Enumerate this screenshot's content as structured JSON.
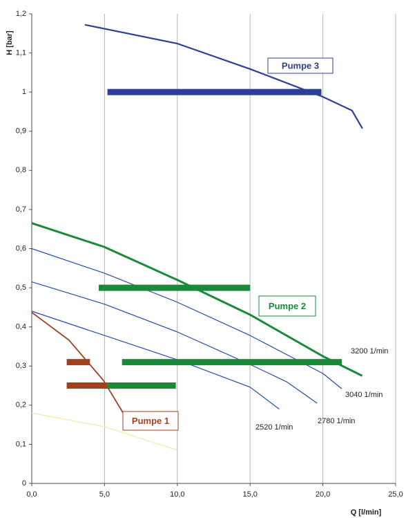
{
  "chart_data": {
    "type": "line",
    "y_label": "H [bar]",
    "x_label": "Q [l/min]",
    "xlim": [
      0,
      25
    ],
    "xticks": [
      {
        "value": 0,
        "label": "0,0"
      },
      {
        "value": 5,
        "label": "5,0"
      },
      {
        "value": 10,
        "label": "10,0"
      },
      {
        "value": 15,
        "label": "15,0"
      },
      {
        "value": 20,
        "label": "20,0"
      },
      {
        "value": 25,
        "label": "25,0"
      }
    ],
    "ylim": [
      0,
      1.2
    ],
    "yticks": [
      0,
      {
        "value": 0.1,
        "label": "0,1"
      },
      {
        "value": 0.2,
        "label": "0,2"
      },
      {
        "value": 0.3,
        "label": "0,3"
      },
      {
        "value": 0.4,
        "label": "0,4"
      },
      {
        "value": 0.5,
        "label": "0,5"
      },
      {
        "value": 0.6,
        "label": "0,6"
      },
      {
        "value": 0.7,
        "label": "0,7"
      },
      {
        "value": 0.8,
        "label": "0,8"
      },
      {
        "value": 0.9,
        "label": "0,9"
      },
      1,
      {
        "value": 1.1,
        "label": "1,1"
      },
      {
        "value": 1.2,
        "label": "1,2"
      }
    ],
    "grid": true,
    "series": [
      {
        "name": "Pumpe 3",
        "color": "#2b3f94",
        "x": [
          3.65,
          10,
          15,
          20,
          22,
          22.72
        ],
        "values": [
          1.172,
          1.124,
          1.059,
          0.988,
          0.953,
          0.907
        ]
      },
      {
        "name": "Pumpe 2",
        "color": "#1a8a3a",
        "x": [
          0,
          5,
          10,
          15,
          20,
          22.7
        ],
        "values": [
          0.665,
          0.604,
          0.52,
          0.431,
          0.325,
          0.275
        ]
      },
      {
        "name": "3040 1/min",
        "color": "#1f4fa8",
        "x": [
          0,
          5,
          10,
          15,
          20,
          21.3
        ],
        "values": [
          0.6,
          0.537,
          0.463,
          0.378,
          0.281,
          0.242
        ]
      },
      {
        "name": "2780 1/min",
        "color": "#1f4fa8",
        "x": [
          0,
          5,
          10,
          15,
          17.5,
          19.6
        ],
        "values": [
          0.515,
          0.458,
          0.387,
          0.304,
          0.26,
          0.205
        ]
      },
      {
        "name": "2520 1/min",
        "color": "#1f4fa8",
        "x": [
          0,
          5,
          10,
          15,
          17
        ],
        "values": [
          0.44,
          0.378,
          0.316,
          0.246,
          0.19
        ]
      },
      {
        "name": "Pumpe 1",
        "color": "#a0401e",
        "x": [
          0,
          2.56,
          4.93,
          6.36
        ],
        "values": [
          0.437,
          0.366,
          0.263,
          0.175
        ]
      },
      {
        "color": "#f7e9a8",
        "x": [
          0,
          5,
          10
        ],
        "values": [
          0.18,
          0.145,
          0.085
        ]
      }
    ],
    "annotations": [
      "3200 1/min"
    ],
    "ranges": [
      {
        "color": "#2b3f94",
        "value": 1.0,
        "x": [
          5.2,
          19.9
        ]
      },
      {
        "color": "#1a8a3a",
        "value": 0.5,
        "x": [
          4.6,
          15
        ]
      },
      {
        "color": "#1a8a3a",
        "value": 0.31,
        "x": [
          6.2,
          21.3
        ]
      },
      {
        "color": "#1a8a3a",
        "value": 0.25,
        "x": [
          5.2,
          9.9
        ]
      },
      {
        "color": "#a0401e",
        "value": 0.31,
        "x": [
          2.4,
          4.0
        ]
      },
      {
        "color": "#a0401e",
        "value": 0.25,
        "x": [
          2.4,
          5.2
        ]
      }
    ]
  }
}
